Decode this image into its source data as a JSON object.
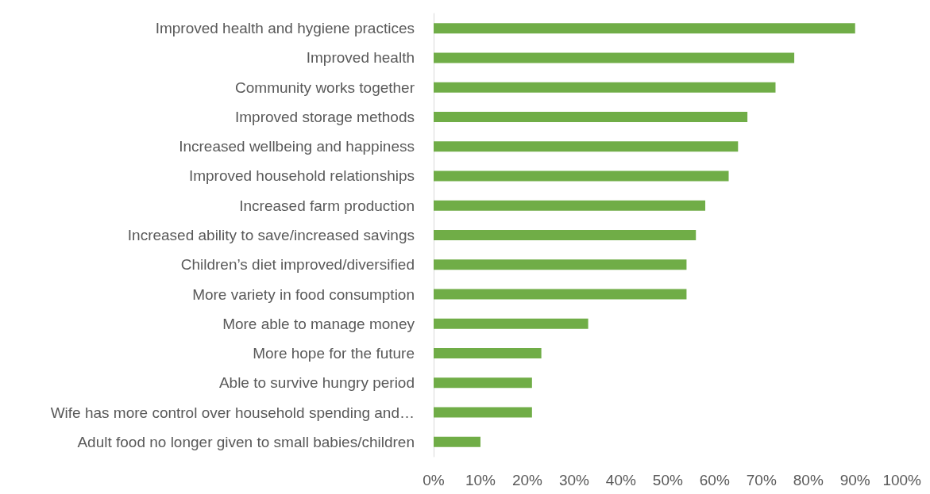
{
  "chart_data": {
    "type": "bar",
    "orientation": "horizontal",
    "color": "#70ad47",
    "categories": [
      "Improved health and hygiene practices",
      "Improved health",
      "Community works together",
      "Improved storage methods",
      "Increased wellbeing and happiness",
      "Improved household relationships",
      "Increased farm production",
      "Increased ability to save/increased savings",
      "Children’s diet improved/diversified",
      "More variety in food consumption",
      "More able to manage money",
      "More hope for the future",
      "Able to survive hungry period",
      "Wife has more control over household spending and…",
      "Adult food no longer given to small babies/children"
    ],
    "values": [
      90,
      77,
      73,
      67,
      65,
      63,
      58,
      56,
      54,
      54,
      33,
      23,
      21,
      21,
      10
    ],
    "xlim": [
      0,
      100
    ],
    "xticks": [
      {
        "value": 0,
        "label": "0%"
      },
      {
        "value": 10,
        "label": "10%"
      },
      {
        "value": 20,
        "label": "20%"
      },
      {
        "value": 30,
        "label": "30%"
      },
      {
        "value": 40,
        "label": "40%"
      },
      {
        "value": 50,
        "label": "50%"
      },
      {
        "value": 60,
        "label": "60%"
      },
      {
        "value": 70,
        "label": "70%"
      },
      {
        "value": 80,
        "label": "80%"
      },
      {
        "value": 90,
        "label": "90%"
      },
      {
        "value": 100,
        "label": "100%"
      }
    ],
    "grid": false
  }
}
